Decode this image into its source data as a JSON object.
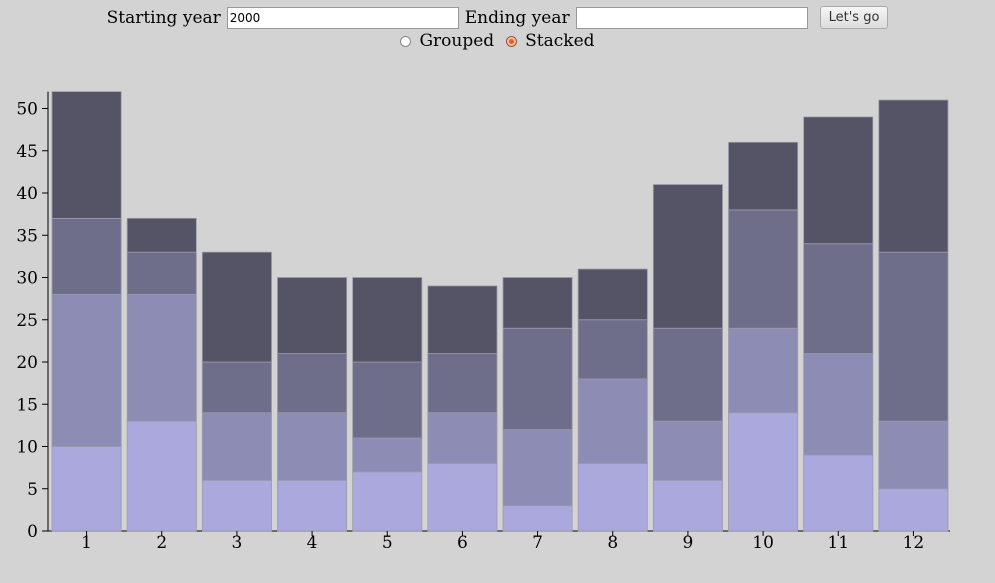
{
  "controls": {
    "start_label": "Starting year",
    "start_value": "2000",
    "end_label": "Ending year",
    "end_value": "",
    "go_label": "Let's go",
    "grouped_label": "Grouped",
    "stacked_label": "Stacked",
    "selected_mode": "stacked"
  },
  "chart_data": {
    "type": "bar",
    "mode": "stacked",
    "categories": [
      "1",
      "2",
      "3",
      "4",
      "5",
      "6",
      "7",
      "8",
      "9",
      "10",
      "11",
      "12"
    ],
    "ylim": [
      0,
      52
    ],
    "yticks": [
      0,
      5,
      10,
      15,
      20,
      25,
      30,
      35,
      40,
      45,
      50
    ],
    "series": [
      {
        "color": "#aaa8dd",
        "values": [
          10,
          13,
          6,
          6,
          7,
          8,
          3,
          8,
          6,
          14,
          9,
          5
        ]
      },
      {
        "color": "#8c8cb4",
        "values": [
          18,
          15,
          8,
          8,
          4,
          6,
          9,
          10,
          7,
          10,
          12,
          8
        ]
      },
      {
        "color": "#6e6e8a",
        "values": [
          9,
          5,
          6,
          7,
          9,
          7,
          12,
          7,
          11,
          14,
          13,
          20
        ]
      },
      {
        "color": "#545466",
        "values": [
          15,
          4,
          13,
          9,
          10,
          8,
          6,
          6,
          17,
          8,
          15,
          18
        ]
      }
    ],
    "grid": false
  }
}
